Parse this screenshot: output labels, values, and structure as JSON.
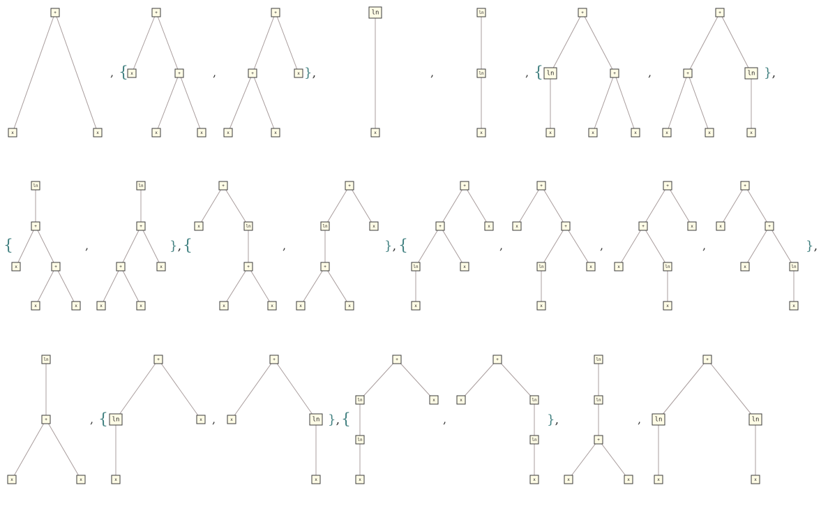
{
  "trees": [
    {
      "id": "t1",
      "nodes": [
        {
          "id": "a",
          "label": "+"
        },
        {
          "id": "b",
          "label": "x"
        },
        {
          "id": "c",
          "label": "x"
        }
      ],
      "edges": [
        [
          "a",
          "b"
        ],
        [
          "a",
          "c"
        ]
      ]
    },
    {
      "id": "t2",
      "nodes": [
        {
          "id": "a",
          "label": "+"
        },
        {
          "id": "b",
          "label": "x"
        },
        {
          "id": "c",
          "label": "+"
        },
        {
          "id": "d",
          "label": "x"
        },
        {
          "id": "e",
          "label": "x"
        }
      ],
      "edges": [
        [
          "a",
          "b"
        ],
        [
          "a",
          "c"
        ],
        [
          "c",
          "d"
        ],
        [
          "c",
          "e"
        ]
      ]
    },
    {
      "id": "t3",
      "nodes": [
        {
          "id": "a",
          "label": "+"
        },
        {
          "id": "b",
          "label": "+"
        },
        {
          "id": "c",
          "label": "x"
        },
        {
          "id": "d",
          "label": "x"
        },
        {
          "id": "e",
          "label": "x"
        }
      ],
      "edges": [
        [
          "a",
          "b"
        ],
        [
          "a",
          "c"
        ],
        [
          "b",
          "d"
        ],
        [
          "b",
          "e"
        ]
      ]
    },
    {
      "id": "t4",
      "nodes": [
        {
          "id": "a",
          "label": "ln"
        },
        {
          "id": "b",
          "label": "x"
        }
      ],
      "edges": [
        [
          "a",
          "b"
        ]
      ]
    },
    {
      "id": "t5",
      "nodes": [
        {
          "id": "a",
          "label": "ln"
        },
        {
          "id": "b",
          "label": "ln"
        },
        {
          "id": "c",
          "label": "x"
        }
      ],
      "edges": [
        [
          "a",
          "b"
        ],
        [
          "b",
          "c"
        ]
      ]
    },
    {
      "id": "t6",
      "nodes": [
        {
          "id": "a",
          "label": "+"
        },
        {
          "id": "b",
          "label": "ln"
        },
        {
          "id": "c",
          "label": "+"
        },
        {
          "id": "d",
          "label": "x"
        },
        {
          "id": "e",
          "label": "x"
        },
        {
          "id": "f",
          "label": "x"
        }
      ],
      "edges": [
        [
          "a",
          "b"
        ],
        [
          "a",
          "c"
        ],
        [
          "b",
          "d"
        ],
        [
          "c",
          "e"
        ],
        [
          "c",
          "f"
        ]
      ]
    },
    {
      "id": "t7",
      "nodes": [
        {
          "id": "a",
          "label": "+"
        },
        {
          "id": "b",
          "label": "+"
        },
        {
          "id": "c",
          "label": "ln"
        },
        {
          "id": "d",
          "label": "x"
        },
        {
          "id": "e",
          "label": "x"
        },
        {
          "id": "f",
          "label": "x"
        }
      ],
      "edges": [
        [
          "a",
          "b"
        ],
        [
          "a",
          "c"
        ],
        [
          "b",
          "d"
        ],
        [
          "b",
          "e"
        ],
        [
          "c",
          "f"
        ]
      ]
    },
    {
      "id": "t8",
      "nodes": [
        {
          "id": "a",
          "label": "ln"
        },
        {
          "id": "b",
          "label": "+"
        },
        {
          "id": "c",
          "label": "x"
        },
        {
          "id": "d",
          "label": "+"
        },
        {
          "id": "e",
          "label": "x"
        },
        {
          "id": "f",
          "label": "x"
        }
      ],
      "edges": [
        [
          "a",
          "b"
        ],
        [
          "b",
          "c"
        ],
        [
          "b",
          "d"
        ],
        [
          "d",
          "e"
        ],
        [
          "d",
          "f"
        ]
      ]
    },
    {
      "id": "t9",
      "nodes": [
        {
          "id": "a",
          "label": "ln"
        },
        {
          "id": "b",
          "label": "+"
        },
        {
          "id": "c",
          "label": "+"
        },
        {
          "id": "d",
          "label": "x"
        },
        {
          "id": "e",
          "label": "x"
        },
        {
          "id": "f",
          "label": "x"
        }
      ],
      "edges": [
        [
          "a",
          "b"
        ],
        [
          "b",
          "c"
        ],
        [
          "b",
          "d"
        ],
        [
          "c",
          "e"
        ],
        [
          "c",
          "f"
        ]
      ]
    },
    {
      "id": "t10",
      "nodes": [
        {
          "id": "a",
          "label": "+"
        },
        {
          "id": "b",
          "label": "x"
        },
        {
          "id": "c",
          "label": "ln"
        },
        {
          "id": "d",
          "label": "+"
        },
        {
          "id": "e",
          "label": "x"
        },
        {
          "id": "f",
          "label": "x"
        }
      ],
      "edges": [
        [
          "a",
          "b"
        ],
        [
          "a",
          "c"
        ],
        [
          "c",
          "d"
        ],
        [
          "d",
          "e"
        ],
        [
          "d",
          "f"
        ]
      ]
    },
    {
      "id": "t11",
      "nodes": [
        {
          "id": "a",
          "label": "+"
        },
        {
          "id": "b",
          "label": "ln"
        },
        {
          "id": "c",
          "label": "x"
        },
        {
          "id": "d",
          "label": "+"
        },
        {
          "id": "e",
          "label": "x"
        },
        {
          "id": "f",
          "label": "x"
        }
      ],
      "edges": [
        [
          "a",
          "b"
        ],
        [
          "a",
          "c"
        ],
        [
          "b",
          "d"
        ],
        [
          "d",
          "e"
        ],
        [
          "d",
          "f"
        ]
      ]
    },
    {
      "id": "t12",
      "nodes": [
        {
          "id": "a",
          "label": "+"
        },
        {
          "id": "b",
          "label": "+"
        },
        {
          "id": "c",
          "label": "x"
        },
        {
          "id": "d",
          "label": "ln"
        },
        {
          "id": "e",
          "label": "x"
        },
        {
          "id": "f",
          "label": "x"
        }
      ],
      "edges": [
        [
          "a",
          "b"
        ],
        [
          "a",
          "c"
        ],
        [
          "b",
          "d"
        ],
        [
          "b",
          "e"
        ],
        [
          "d",
          "f"
        ]
      ]
    },
    {
      "id": "t13",
      "nodes": [
        {
          "id": "a",
          "label": "+"
        },
        {
          "id": "b",
          "label": "x"
        },
        {
          "id": "c",
          "label": "+"
        },
        {
          "id": "d",
          "label": "ln"
        },
        {
          "id": "e",
          "label": "x"
        },
        {
          "id": "f",
          "label": "x"
        }
      ],
      "edges": [
        [
          "a",
          "b"
        ],
        [
          "a",
          "c"
        ],
        [
          "c",
          "d"
        ],
        [
          "c",
          "e"
        ],
        [
          "d",
          "f"
        ]
      ]
    },
    {
      "id": "t14",
      "nodes": [
        {
          "id": "a",
          "label": "+"
        },
        {
          "id": "b",
          "label": "+"
        },
        {
          "id": "c",
          "label": "x"
        },
        {
          "id": "d",
          "label": "x"
        },
        {
          "id": "e",
          "label": "ln"
        },
        {
          "id": "f",
          "label": "x"
        }
      ],
      "edges": [
        [
          "a",
          "b"
        ],
        [
          "a",
          "c"
        ],
        [
          "b",
          "d"
        ],
        [
          "b",
          "e"
        ],
        [
          "e",
          "f"
        ]
      ]
    },
    {
      "id": "t15",
      "nodes": [
        {
          "id": "a",
          "label": "+"
        },
        {
          "id": "b",
          "label": "x"
        },
        {
          "id": "c",
          "label": "+"
        },
        {
          "id": "d",
          "label": "x"
        },
        {
          "id": "e",
          "label": "ln"
        },
        {
          "id": "f",
          "label": "x"
        }
      ],
      "edges": [
        [
          "a",
          "b"
        ],
        [
          "a",
          "c"
        ],
        [
          "c",
          "d"
        ],
        [
          "c",
          "e"
        ],
        [
          "e",
          "f"
        ]
      ]
    },
    {
      "id": "t16",
      "nodes": [
        {
          "id": "a",
          "label": "ln"
        },
        {
          "id": "b",
          "label": "+"
        },
        {
          "id": "c",
          "label": "x"
        },
        {
          "id": "d",
          "label": "x"
        }
      ],
      "edges": [
        [
          "a",
          "b"
        ],
        [
          "b",
          "c"
        ],
        [
          "b",
          "d"
        ]
      ]
    },
    {
      "id": "t17",
      "nodes": [
        {
          "id": "a",
          "label": "+"
        },
        {
          "id": "b",
          "label": "ln"
        },
        {
          "id": "c",
          "label": "x"
        },
        {
          "id": "d",
          "label": "x"
        }
      ],
      "edges": [
        [
          "a",
          "b"
        ],
        [
          "a",
          "c"
        ],
        [
          "b",
          "d"
        ]
      ]
    },
    {
      "id": "t18",
      "nodes": [
        {
          "id": "a",
          "label": "+"
        },
        {
          "id": "b",
          "label": "x"
        },
        {
          "id": "c",
          "label": "ln"
        },
        {
          "id": "d",
          "label": "x"
        }
      ],
      "edges": [
        [
          "a",
          "b"
        ],
        [
          "a",
          "c"
        ],
        [
          "c",
          "d"
        ]
      ]
    },
    {
      "id": "t19",
      "nodes": [
        {
          "id": "a",
          "label": "+"
        },
        {
          "id": "b",
          "label": "ln"
        },
        {
          "id": "c",
          "label": "x"
        },
        {
          "id": "d",
          "label": "ln"
        },
        {
          "id": "e",
          "label": "x"
        }
      ],
      "edges": [
        [
          "a",
          "b"
        ],
        [
          "a",
          "c"
        ],
        [
          "b",
          "d"
        ],
        [
          "d",
          "e"
        ]
      ]
    },
    {
      "id": "t20",
      "nodes": [
        {
          "id": "a",
          "label": "+"
        },
        {
          "id": "b",
          "label": "x"
        },
        {
          "id": "c",
          "label": "ln"
        },
        {
          "id": "d",
          "label": "ln"
        },
        {
          "id": "e",
          "label": "x"
        }
      ],
      "edges": [
        [
          "a",
          "b"
        ],
        [
          "a",
          "c"
        ],
        [
          "c",
          "d"
        ],
        [
          "d",
          "e"
        ]
      ]
    },
    {
      "id": "t21",
      "nodes": [
        {
          "id": "a",
          "label": "ln"
        },
        {
          "id": "b",
          "label": "ln"
        },
        {
          "id": "c",
          "label": "+"
        },
        {
          "id": "d",
          "label": "x"
        },
        {
          "id": "e",
          "label": "x"
        }
      ],
      "edges": [
        [
          "a",
          "b"
        ],
        [
          "b",
          "c"
        ],
        [
          "c",
          "d"
        ],
        [
          "c",
          "e"
        ]
      ]
    },
    {
      "id": "t22",
      "nodes": [
        {
          "id": "a",
          "label": "+"
        },
        {
          "id": "b",
          "label": "ln"
        },
        {
          "id": "c",
          "label": "ln"
        },
        {
          "id": "d",
          "label": "x"
        },
        {
          "id": "e",
          "label": "x"
        }
      ],
      "edges": [
        [
          "a",
          "b"
        ],
        [
          "a",
          "c"
        ],
        [
          "b",
          "d"
        ],
        [
          "c",
          "e"
        ]
      ]
    }
  ],
  "punctuation": [
    {
      "id": "p1",
      "text": ","
    },
    {
      "id": "p2",
      "text": "{"
    },
    {
      "id": "p3",
      "text": ","
    },
    {
      "id": "p4",
      "text": "},"
    },
    {
      "id": "p5",
      "text": ","
    },
    {
      "id": "p6",
      "text": ","
    },
    {
      "id": "p7",
      "text": "{"
    },
    {
      "id": "p8",
      "text": ","
    },
    {
      "id": "p9",
      "text": "},"
    },
    {
      "id": "p10",
      "text": "{"
    },
    {
      "id": "p11",
      "text": ","
    },
    {
      "id": "p12",
      "text": "},"
    },
    {
      "id": "p13",
      "text": "{"
    },
    {
      "id": "p14",
      "text": ","
    },
    {
      "id": "p15",
      "text": "},"
    },
    {
      "id": "p16",
      "text": "{"
    },
    {
      "id": "p17",
      "text": ","
    },
    {
      "id": "p18",
      "text": ","
    },
    {
      "id": "p19",
      "text": ","
    },
    {
      "id": "p20",
      "text": "},"
    },
    {
      "id": "p21",
      "text": ","
    },
    {
      "id": "p22",
      "text": "{"
    },
    {
      "id": "p23",
      "text": ","
    },
    {
      "id": "p24",
      "text": "},"
    },
    {
      "id": "p25",
      "text": "{"
    },
    {
      "id": "p26",
      "text": ","
    },
    {
      "id": "p27",
      "text": "},"
    },
    {
      "id": "p28",
      "text": ","
    }
  ],
  "colors": {
    "node_fill": "#fffce6",
    "node_stroke": "#3a3a3a",
    "edge": "#a89c9c",
    "brace": "#3f7f7f"
  }
}
